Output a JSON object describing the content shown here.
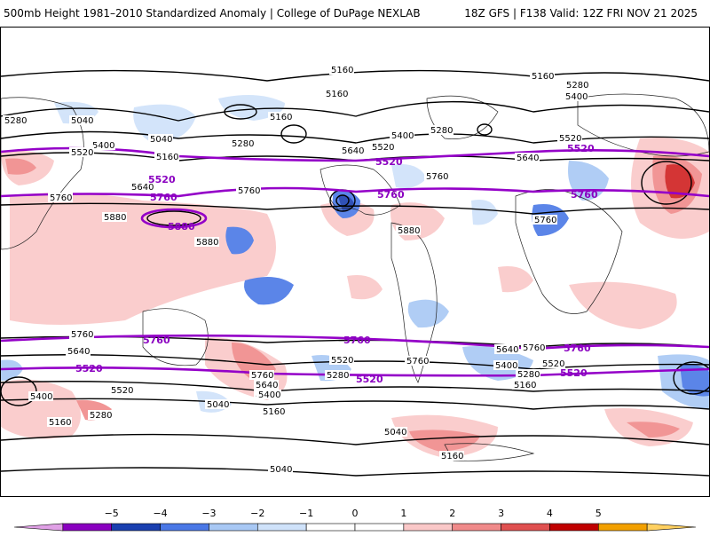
{
  "header": {
    "title": "500mb Height 1981–2010 Standardized Anomaly | College of DuPage NEXLAB",
    "run_info": "18Z GFS | F138 Valid: 12Z FRI NOV 21 2025"
  },
  "contour_labels": {
    "c5160": "5160",
    "c5040": "5040",
    "c5280": "5280",
    "c5400": "5400",
    "c5520": "5520",
    "c5640": "5640",
    "c5760": "5760",
    "c5880": "5880"
  },
  "colorbar": {
    "ticks": [
      "−5",
      "−4",
      "−3",
      "−2",
      "−1",
      "0",
      "1",
      "2",
      "3",
      "4",
      "5"
    ],
    "colors": [
      "#e0a0e6",
      "#8a00c0",
      "#1a3fb0",
      "#4a78e6",
      "#a8c8f4",
      "#cfe2fa",
      "#ffffff",
      "#ffffff",
      "#fac8c8",
      "#f08a8a",
      "#e05050",
      "#c00000",
      "#f2a000",
      "#ffd060"
    ]
  }
}
